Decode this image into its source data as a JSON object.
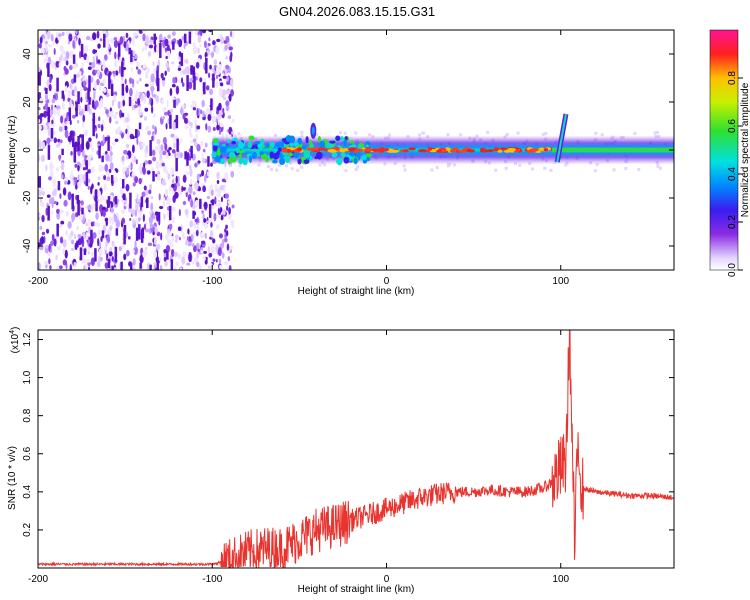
{
  "figure": {
    "title": "GN04.2026.083.15.15.G31"
  },
  "chart_data": [
    {
      "type": "heatmap",
      "xlabel": "Height of straight line (km)",
      "ylabel": "Frequency (Hz)",
      "xlim": [
        -200,
        165
      ],
      "ylim": [
        -50,
        50
      ],
      "xticks": [
        -200,
        -100,
        0,
        100
      ],
      "yticks": [
        -40,
        -20,
        0,
        20,
        40
      ],
      "colorbar": {
        "label": "Normalized spectral amplitude",
        "range": [
          0,
          1
        ],
        "ticks": [
          "0.0",
          "0.2",
          "0.4",
          "0.6",
          "0.8"
        ],
        "colormap": "rainbow (white-violet-blue-cyan-green-yellow-red-magenta)"
      },
      "features": [
        {
          "name": "broadband noise region",
          "x_range": [
            -200,
            -90
          ],
          "freq_range": [
            -50,
            50
          ],
          "amplitude": "low (0.05-0.25)"
        },
        {
          "name": "signal band",
          "x_range": [
            -100,
            165
          ],
          "center_freq": 0,
          "half_width_hz": 5,
          "peak_amplitude": 0.9
        },
        {
          "name": "chirp feature",
          "x": 102,
          "freq_range": [
            -5,
            15
          ]
        },
        {
          "name": "upper spur",
          "x": -42,
          "freq_range": [
            3,
            12
          ]
        }
      ]
    },
    {
      "type": "line",
      "xlabel": "Height of straight line (km)",
      "ylabel": "SNR (10 * v/v)",
      "y_multiplier": "(x10^4)",
      "xlim": [
        -200,
        165
      ],
      "ylim": [
        0,
        1.25
      ],
      "xticks": [
        -200,
        -100,
        0,
        100
      ],
      "yticks": [
        0.2,
        0.4,
        0.6,
        0.8,
        1.0,
        1.2
      ],
      "series": [
        {
          "color": "#e8332e",
          "x": [
            -200,
            -150,
            -120,
            -100,
            -90,
            -80,
            -70,
            -60,
            -50,
            -40,
            -30,
            -20,
            -10,
            0,
            10,
            20,
            30,
            40,
            50,
            60,
            70,
            80,
            90,
            95,
            100,
            103,
            105,
            108,
            110,
            112,
            120,
            130,
            140,
            150,
            165
          ],
          "y": [
            0.02,
            0.02,
            0.02,
            0.02,
            0.04,
            0.08,
            0.1,
            0.1,
            0.15,
            0.2,
            0.22,
            0.25,
            0.28,
            0.31,
            0.34,
            0.37,
            0.39,
            0.4,
            0.4,
            0.41,
            0.4,
            0.4,
            0.42,
            0.45,
            0.52,
            0.55,
            1.25,
            0.1,
            0.7,
            0.42,
            0.4,
            0.39,
            0.38,
            0.38,
            0.37
          ]
        }
      ]
    }
  ]
}
